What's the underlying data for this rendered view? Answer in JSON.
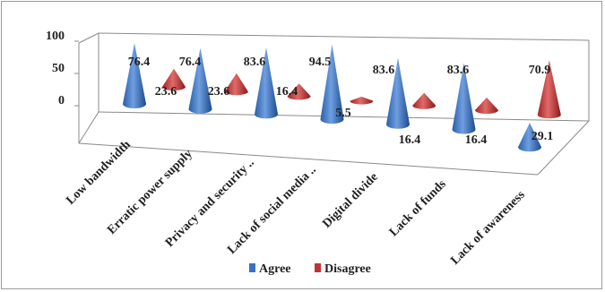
{
  "chart_data": {
    "type": "bar",
    "shape": "cone-3d",
    "categories": [
      "Low bandwidth",
      "Erratic power supply",
      "Privacy and security ..",
      "Lack of social media ..",
      "Digital divide",
      "Lack of funds",
      "Lack of awareness"
    ],
    "series": [
      {
        "name": "Agree",
        "values": [
          76.4,
          76.4,
          83.6,
          94.5,
          83.6,
          83.6,
          29.1
        ],
        "color": "#3a71c2"
      },
      {
        "name": "Disagree",
        "values": [
          23.6,
          23.6,
          16.4,
          5.5,
          16.4,
          16.4,
          70.9
        ],
        "color": "#c23434"
      }
    ],
    "value_labels": {
      "agree": [
        "76.4",
        "76.4",
        "83.6",
        "94.5",
        "83.6",
        "83.6",
        "29.1"
      ],
      "disagree": [
        "23.6",
        "23.6",
        "16.4",
        "5.5",
        "16.4",
        "16.4",
        "70.9"
      ]
    },
    "y_ticks": [
      "100",
      "50",
      "0"
    ],
    "ylim": [
      0,
      100
    ],
    "grid": false,
    "legend_position": "bottom",
    "title": "",
    "xlabel": "",
    "ylabel": ""
  }
}
